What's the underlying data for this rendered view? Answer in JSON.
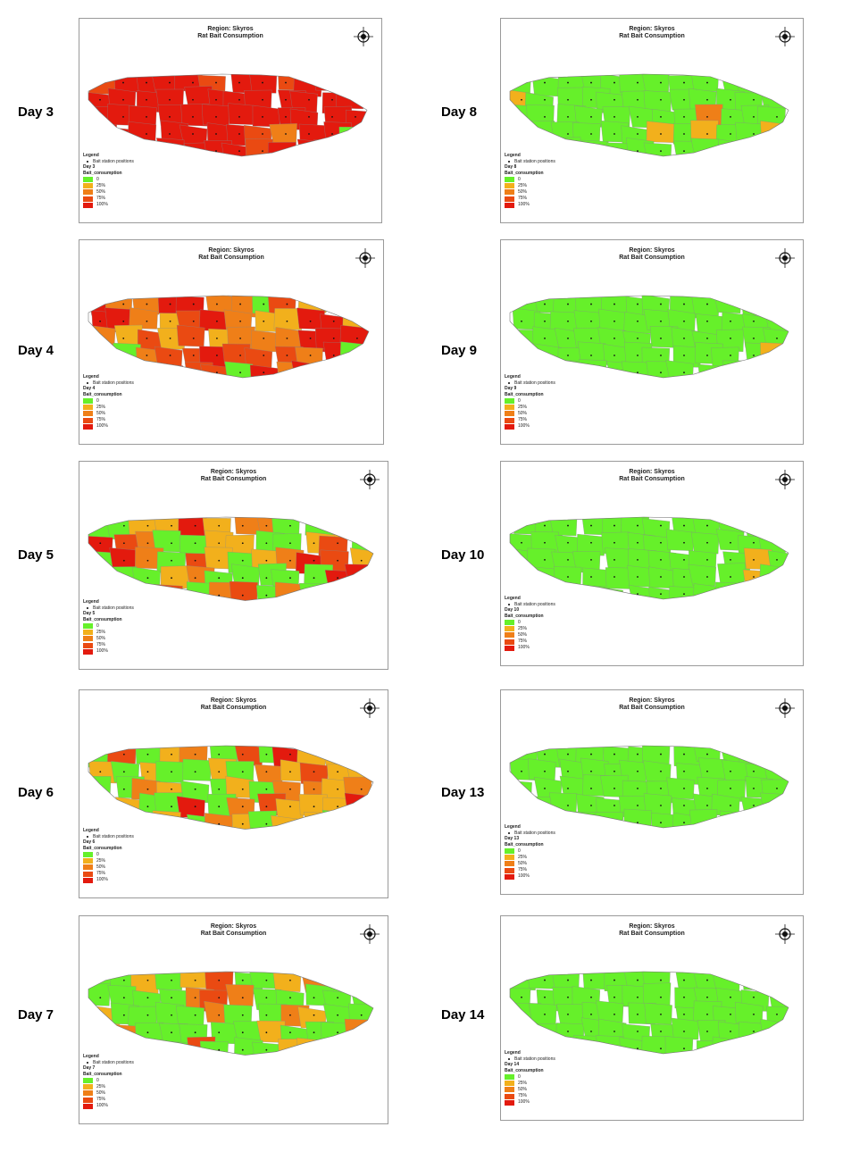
{
  "colors": {
    "class_0": "#66f02a",
    "class_25": "#f2b01c",
    "class_50": "#ef7f18",
    "class_75": "#ea4a12",
    "class_100": "#e31a0e"
  },
  "map_title_line1": "Region: Skyros",
  "map_title_line2": "Rat Bait Consumption",
  "legend": {
    "heading": "Legend",
    "point_label": "Bait station positions",
    "field": "Bait_consumption",
    "classes": [
      "0",
      "25%",
      "50%",
      "75%",
      "100%"
    ]
  },
  "icons": {
    "north_arrow": "compass-north-arrow-icon",
    "bait_station": "dot-icon"
  },
  "panels": [
    {
      "day": "Day 3",
      "legend_day": "Day 3",
      "level_summary": "mostly 100%"
    },
    {
      "day": "Day 4",
      "legend_day": "Day 4",
      "level_summary": "mixed 25%-100%"
    },
    {
      "day": "Day 5",
      "legend_day": "Day 5",
      "level_summary": "mixed 0%-100%"
    },
    {
      "day": "Day 6",
      "legend_day": "Day 6",
      "level_summary": "mixed 0%-100%"
    },
    {
      "day": "Day 7",
      "legend_day": "Day 7",
      "level_summary": "mostly 0%-25%"
    },
    {
      "day": "Day 8",
      "legend_day": "Day 8",
      "level_summary": "mostly 0%"
    },
    {
      "day": "Day 9",
      "legend_day": "Day 9",
      "level_summary": "mostly 0%"
    },
    {
      "day": "Day 10",
      "legend_day": "Day 10",
      "level_summary": "mostly 0%"
    },
    {
      "day": "Day 13",
      "legend_day": "Day 13",
      "level_summary": "mostly 0%"
    },
    {
      "day": "Day 14",
      "legend_day": "Day 14",
      "level_summary": "all 0%"
    }
  ]
}
